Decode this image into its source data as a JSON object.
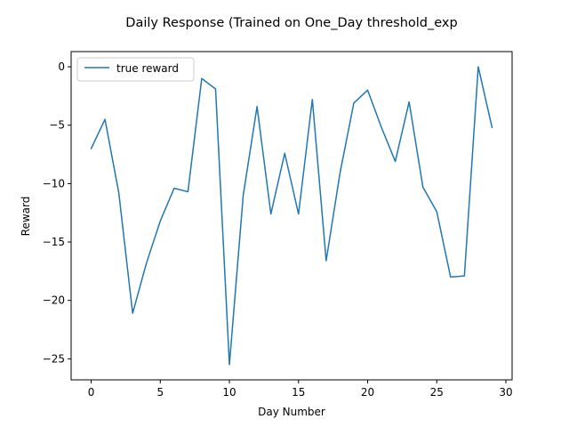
{
  "chart_data": {
    "type": "line",
    "title": "Daily Response (Trained on One_Day threshold_exp",
    "xlabel": "Day Number",
    "ylabel": "Reward",
    "xlim": [
      -1.45,
      30.45
    ],
    "ylim": [
      -26.8,
      1.3
    ],
    "xticks": [
      0,
      5,
      10,
      15,
      20,
      25,
      30
    ],
    "yticks": [
      0,
      -5,
      -10,
      -15,
      -20,
      -25
    ],
    "grid": false,
    "legend": "top-left",
    "series": [
      {
        "name": "true reward",
        "color": "#1f77b4",
        "x": [
          0,
          1,
          2,
          3,
          4,
          5,
          6,
          7,
          8,
          9,
          10,
          11,
          12,
          13,
          14,
          15,
          16,
          17,
          18,
          19,
          20,
          21,
          22,
          23,
          24,
          25,
          26,
          27,
          28,
          29
        ],
        "y": [
          -7.0,
          -4.5,
          -10.8,
          -21.1,
          -16.8,
          -13.2,
          -10.4,
          -10.7,
          -1.0,
          -1.9,
          -25.5,
          -11.0,
          -3.4,
          -12.6,
          -7.4,
          -12.6,
          -2.8,
          -16.6,
          -9.1,
          -3.1,
          -2.0,
          -5.2,
          -8.1,
          -3.0,
          -10.3,
          -12.4,
          -18.0,
          -17.9,
          0.0,
          -5.2
        ]
      }
    ]
  }
}
